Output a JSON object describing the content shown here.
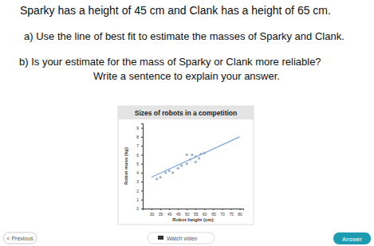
{
  "page": {
    "intro": "Sparky has a height of 45 cm and Clank has a height of 65 cm.",
    "questions": [
      "a) Use the line of best fit to estimate the masses of Sparky and Clank.",
      "b) Is your estimate for the mass of Sparky or Clank more reliable?",
      "Write a sentence to explain your answer."
    ],
    "buttons": [
      "< Previous",
      "Watch video",
      "Answer"
    ]
  },
  "chart_data": {
    "type": "scatter",
    "title": "Sizes of robots in a competition",
    "x_label": "Robot height (cm)",
    "y_label": "Robot mass (kg)",
    "xlim": [
      25,
      82
    ],
    "ylim": [
      0,
      9.5
    ],
    "xticks": [
      30,
      35,
      40,
      45,
      50,
      55,
      60,
      65,
      70,
      75,
      80
    ],
    "yticks": [
      0,
      1,
      2,
      3,
      4,
      5,
      6,
      7,
      8,
      9
    ],
    "grid": false,
    "series": [
      {
        "type": "scatter",
        "color": "#9fb3c8",
        "marker": "circle",
        "x": [
          33,
          35,
          38,
          40,
          42,
          45,
          47,
          50,
          50,
          52,
          53,
          55,
          55,
          57,
          58,
          60
        ],
        "values": [
          3.3,
          3.5,
          4.0,
          4.2,
          4.0,
          4.5,
          4.8,
          5.0,
          6.0,
          5.5,
          6.0,
          5.8,
          5.2,
          5.6,
          6.1,
          6.2
        ]
      },
      {
        "type": "line",
        "color": "#7fa7d8",
        "line_style": "solid",
        "x": [
          30,
          80
        ],
        "values": [
          3.5,
          8.0
        ]
      }
    ]
  }
}
